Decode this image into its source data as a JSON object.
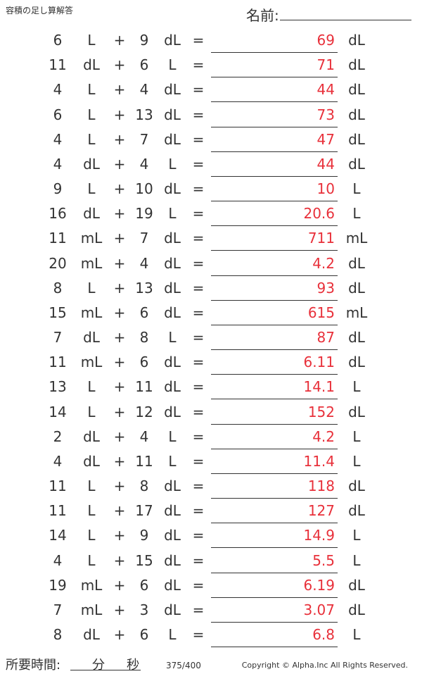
{
  "header": {
    "title": "容積の足し算解答",
    "name_label": "名前:"
  },
  "plus": "+",
  "equals": "=",
  "rows": [
    [
      "6",
      "L",
      "9",
      "dL",
      "69",
      "dL"
    ],
    [
      "11",
      "dL",
      "6",
      "L",
      "71",
      "dL"
    ],
    [
      "4",
      "L",
      "4",
      "dL",
      "44",
      "dL"
    ],
    [
      "6",
      "L",
      "13",
      "dL",
      "73",
      "dL"
    ],
    [
      "4",
      "L",
      "7",
      "dL",
      "47",
      "dL"
    ],
    [
      "4",
      "dL",
      "4",
      "L",
      "44",
      "dL"
    ],
    [
      "9",
      "L",
      "10",
      "dL",
      "10",
      "L"
    ],
    [
      "16",
      "dL",
      "19",
      "L",
      "20.6",
      "L"
    ],
    [
      "11",
      "mL",
      "7",
      "dL",
      "711",
      "mL"
    ],
    [
      "20",
      "mL",
      "4",
      "dL",
      "4.2",
      "dL"
    ],
    [
      "8",
      "L",
      "13",
      "dL",
      "93",
      "dL"
    ],
    [
      "15",
      "mL",
      "6",
      "dL",
      "615",
      "mL"
    ],
    [
      "7",
      "dL",
      "8",
      "L",
      "87",
      "dL"
    ],
    [
      "11",
      "mL",
      "6",
      "dL",
      "6.11",
      "dL"
    ],
    [
      "13",
      "L",
      "11",
      "dL",
      "14.1",
      "L"
    ],
    [
      "14",
      "L",
      "12",
      "dL",
      "152",
      "dL"
    ],
    [
      "2",
      "dL",
      "4",
      "L",
      "4.2",
      "L"
    ],
    [
      "4",
      "dL",
      "11",
      "L",
      "11.4",
      "L"
    ],
    [
      "11",
      "L",
      "8",
      "dL",
      "118",
      "dL"
    ],
    [
      "11",
      "L",
      "17",
      "dL",
      "127",
      "dL"
    ],
    [
      "14",
      "L",
      "9",
      "dL",
      "14.9",
      "L"
    ],
    [
      "4",
      "L",
      "15",
      "dL",
      "5.5",
      "L"
    ],
    [
      "19",
      "mL",
      "6",
      "dL",
      "6.19",
      "dL"
    ],
    [
      "7",
      "mL",
      "3",
      "dL",
      "3.07",
      "dL"
    ],
    [
      "8",
      "dL",
      "6",
      "L",
      "6.8",
      "L"
    ]
  ],
  "footer": {
    "time_label": "所要時間:",
    "minutes": "分",
    "seconds": "秒",
    "page": "375/400",
    "copyright": "Copyright © Alpha.Inc All Rights Reserved."
  }
}
